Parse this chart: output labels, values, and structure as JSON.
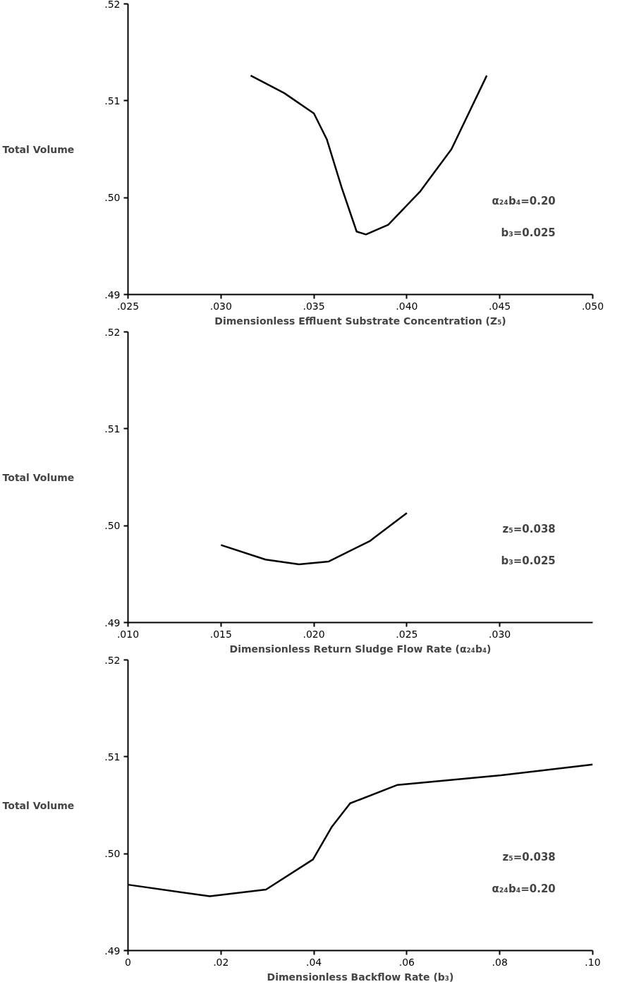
{
  "chart_data": [
    {
      "type": "line",
      "xlabel": "Dimensionless Effluent Substrate Concentration (Z₅)",
      "ylabel": "Total Volume",
      "annotations": [
        "α₂₄b₄=0.20",
        "b₃=0.025"
      ],
      "xlim": [
        0.025,
        0.05
      ],
      "xticks": [
        {
          "value": 0.025,
          "label": ".025"
        },
        {
          "value": 0.03,
          "label": ".030"
        },
        {
          "value": 0.035,
          "label": ".035"
        },
        {
          "value": 0.04,
          "label": ".040"
        },
        {
          "value": 0.045,
          "label": ".045"
        },
        {
          "value": 0.05,
          "label": ".050"
        }
      ],
      "ylim": [
        0.49,
        0.52
      ],
      "yticks": [
        {
          "value": 0.49,
          "label": ".49"
        },
        {
          "value": 0.5,
          "label": ".50"
        },
        {
          "value": 0.51,
          "label": ".51"
        },
        {
          "value": 0.52,
          "label": ".52"
        }
      ],
      "grid": false,
      "marker": "none",
      "line_style": "solid",
      "x": [
        0.0316,
        0.0334,
        0.035,
        0.0357,
        0.0365,
        0.0373,
        0.0378,
        0.039,
        0.0407,
        0.0424,
        0.0443
      ],
      "series": [
        {
          "color": "#000000",
          "values": [
            0.5126,
            0.5108,
            0.5087,
            0.506,
            0.501,
            0.4965,
            0.4962,
            0.4972,
            0.5006,
            0.505,
            0.5126
          ]
        }
      ]
    },
    {
      "type": "line",
      "xlabel": "Dimensionless Return Sludge Flow Rate (α₂₄b₄)",
      "ylabel": "Total Volume",
      "annotations": [
        "z₅=0.038",
        "b₃=0.025"
      ],
      "xlim": [
        0.01,
        0.035
      ],
      "xticks": [
        {
          "value": 0.01,
          "label": ".010"
        },
        {
          "value": 0.015,
          "label": ".015"
        },
        {
          "value": 0.02,
          "label": ".020"
        },
        {
          "value": 0.025,
          "label": ".025"
        },
        {
          "value": 0.03,
          "label": ".030"
        }
      ],
      "ylim": [
        0.49,
        0.52
      ],
      "yticks": [
        {
          "value": 0.49,
          "label": ".49"
        },
        {
          "value": 0.5,
          "label": ".50"
        },
        {
          "value": 0.51,
          "label": ".51"
        },
        {
          "value": 0.52,
          "label": ".52"
        }
      ],
      "grid": false,
      "marker": "none",
      "line_style": "solid",
      "x": [
        0.015,
        0.0174,
        0.0192,
        0.0208,
        0.023,
        0.025
      ],
      "series": [
        {
          "color": "#000000",
          "values": [
            0.498,
            0.4965,
            0.496,
            0.4963,
            0.4984,
            0.5013
          ]
        }
      ]
    },
    {
      "type": "line",
      "xlabel": "Dimensionless Backflow Rate (b₃)",
      "ylabel": "Total Volume",
      "annotations": [
        "z₅=0.038",
        "α₂₄b₄=0.20"
      ],
      "xlim": [
        0,
        0.1
      ],
      "xticks": [
        {
          "value": 0,
          "label": "0"
        },
        {
          "value": 0.02,
          "label": ".02"
        },
        {
          "value": 0.04,
          "label": ".04"
        },
        {
          "value": 0.06,
          "label": ".06"
        },
        {
          "value": 0.08,
          "label": ".08"
        },
        {
          "value": 0.1,
          "label": ".10"
        }
      ],
      "ylim": [
        0.49,
        0.52
      ],
      "yticks": [
        {
          "value": 0.49,
          "label": ".49"
        },
        {
          "value": 0.5,
          "label": ".50"
        },
        {
          "value": 0.51,
          "label": ".51"
        },
        {
          "value": 0.52,
          "label": ".52"
        }
      ],
      "grid": false,
      "marker": "none",
      "line_style": "solid",
      "x": [
        0,
        0.0176,
        0.0297,
        0.0398,
        0.0439,
        0.0478,
        0.058,
        0.0803,
        0.1
      ],
      "series": [
        {
          "color": "#000000",
          "values": [
            0.4968,
            0.4956,
            0.4963,
            0.4994,
            0.5028,
            0.5052,
            0.5071,
            0.5081,
            0.5092
          ]
        }
      ]
    }
  ]
}
